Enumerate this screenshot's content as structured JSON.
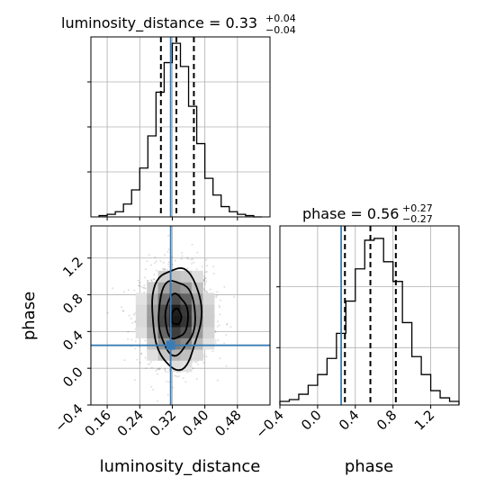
{
  "chart_data": {
    "type": "corner",
    "parameters": [
      "luminosity_distance",
      "phase"
    ],
    "truths": {
      "luminosity_distance": 0.316,
      "phase": 0.25
    },
    "accent_color": "#3a7db6",
    "panels": [
      {
        "name": "luminosity_distance-histogram",
        "type": "histogram",
        "title_param": "luminosity_distance",
        "title_value": "0.33",
        "title_plus": "+0.04",
        "title_minus": "−0.04",
        "xlim": [
          0.12,
          0.56
        ],
        "bin_edges": [
          0.14,
          0.16,
          0.18,
          0.2,
          0.22,
          0.24,
          0.26,
          0.28,
          0.3,
          0.32,
          0.34,
          0.36,
          0.38,
          0.4,
          0.42,
          0.44,
          0.46,
          0.48,
          0.5,
          0.52,
          0.54
        ],
        "counts": [
          1,
          2,
          4,
          10,
          21,
          38,
          63,
          97,
          120,
          135,
          117,
          86,
          57,
          30,
          17,
          8,
          4,
          2,
          1,
          0
        ],
        "ylim": [
          0,
          140
        ],
        "quantile_lines": [
          0.292,
          0.33,
          0.373
        ],
        "truth": 0.316,
        "grid": true
      },
      {
        "name": "phase-histogram",
        "type": "histogram",
        "title_param": "phase",
        "title_value": "0.56",
        "title_plus": "+0.27",
        "title_minus": "−0.27",
        "xlim": [
          -0.4,
          1.5
        ],
        "bin_edges": [
          -0.4,
          -0.3,
          -0.2,
          -0.1,
          0.0,
          0.1,
          0.2,
          0.3,
          0.4,
          0.5,
          0.6,
          0.7,
          0.8,
          0.9,
          1.0,
          1.1,
          1.2,
          1.3,
          1.4,
          1.5
        ],
        "counts": [
          2,
          3,
          6,
          11,
          17,
          26,
          40,
          58,
          76,
          92,
          93,
          80,
          69,
          46,
          27,
          17,
          8,
          4,
          2
        ],
        "ylim": [
          0,
          100
        ],
        "quantile_lines": [
          0.29,
          0.56,
          0.83
        ],
        "truth": 0.25,
        "grid": true,
        "x_ticks": [
          "−0.4",
          "0.0",
          "0.4",
          "0.8",
          "1.2"
        ],
        "x_tick_values": [
          -0.4,
          0.0,
          0.4,
          0.8,
          1.2
        ],
        "xlabel": "phase"
      },
      {
        "name": "joint-density",
        "type": "2d-density",
        "xlim": [
          0.12,
          0.56
        ],
        "ylim": [
          -0.4,
          1.55
        ],
        "x_ticks": [
          "0.16",
          "0.24",
          "0.32",
          "0.40",
          "0.48"
        ],
        "x_tick_values": [
          0.16,
          0.24,
          0.32,
          0.4,
          0.48
        ],
        "y_ticks": [
          "−0.4",
          "0.0",
          "0.4",
          "0.8",
          "1.2"
        ],
        "y_tick_values": [
          -0.4,
          0.0,
          0.4,
          0.8,
          1.2
        ],
        "xlabel": "luminosity_distance",
        "ylabel": "phase",
        "center": [
          0.33,
          0.56
        ],
        "truth": [
          0.316,
          0.25
        ],
        "grid": true
      }
    ]
  }
}
